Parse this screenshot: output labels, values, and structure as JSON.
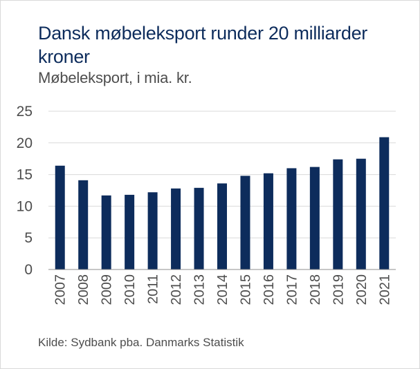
{
  "title": "Dansk møbeleksport runder 20 milliarder kroner",
  "subtitle": "Møbeleksport, i mia. kr.",
  "source": "Kilde: Sydbank pba. Danmarks Statistik",
  "colors": {
    "bar": "#0d2c5c",
    "title": "#0d2c5c",
    "grid": "#d9d9d9",
    "text": "#4d4d4d"
  },
  "chart_data": {
    "type": "bar",
    "title": "Dansk møbeleksport runder 20 milliarder kroner",
    "subtitle": "Møbeleksport, i mia. kr.",
    "xlabel": "",
    "ylabel": "",
    "ylim": [
      0,
      25
    ],
    "yticks": [
      0,
      5,
      10,
      15,
      20,
      25
    ],
    "grid": true,
    "categories": [
      "2007",
      "2008",
      "2009",
      "2010",
      "2011",
      "2012",
      "2013",
      "2014",
      "2015",
      "2016",
      "2017",
      "2018",
      "2019",
      "2020",
      "2021"
    ],
    "values": [
      16.4,
      14.1,
      11.7,
      11.8,
      12.2,
      12.8,
      12.9,
      13.6,
      14.8,
      15.2,
      16.0,
      16.2,
      17.4,
      17.5,
      20.9
    ]
  }
}
